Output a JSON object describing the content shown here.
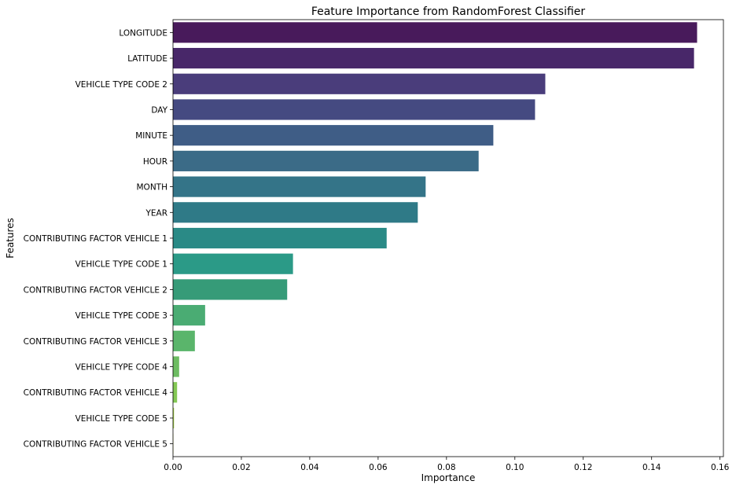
{
  "chart_data": {
    "type": "bar",
    "orientation": "horizontal",
    "title": "Feature Importance from RandomForest Classifier",
    "xlabel": "Importance",
    "ylabel": "Features",
    "xlim": [
      0,
      0.161
    ],
    "xticks": [
      0.0,
      0.02,
      0.04,
      0.06,
      0.08,
      0.1,
      0.12,
      0.14,
      0.16
    ],
    "xtick_labels": [
      "0.00",
      "0.02",
      "0.04",
      "0.06",
      "0.08",
      "0.10",
      "0.12",
      "0.14",
      "0.16"
    ],
    "grid": false,
    "palette": "viridis",
    "categories": [
      "LONGITUDE",
      "LATITUDE",
      "VEHICLE TYPE CODE 2",
      "DAY",
      "MINUTE",
      "HOUR",
      "MONTH",
      "YEAR",
      "CONTRIBUTING FACTOR VEHICLE 1",
      "VEHICLE TYPE CODE 1",
      "CONTRIBUTING FACTOR VEHICLE 2",
      "VEHICLE TYPE CODE 3",
      "CONTRIBUTING FACTOR VEHICLE 3",
      "VEHICLE TYPE CODE 4",
      "CONTRIBUTING FACTOR VEHICLE 4",
      "VEHICLE TYPE CODE 5",
      "CONTRIBUTING FACTOR VEHICLE 5"
    ],
    "values": [
      0.1533,
      0.1524,
      0.1089,
      0.1059,
      0.0937,
      0.0894,
      0.0739,
      0.0716,
      0.0625,
      0.0351,
      0.0334,
      0.0094,
      0.0064,
      0.0018,
      0.0012,
      0.0003,
      0.0001
    ],
    "colors": [
      "#481a5b",
      "#482769",
      "#4a3d7b",
      "#454a81",
      "#3f5d86",
      "#3b6b87",
      "#347488",
      "#2f7a87",
      "#2a8a86",
      "#2b9a87",
      "#369b78",
      "#4aac73",
      "#5ab56b",
      "#6dbc62",
      "#84c855",
      "#a7d445",
      "#d1e230"
    ]
  }
}
